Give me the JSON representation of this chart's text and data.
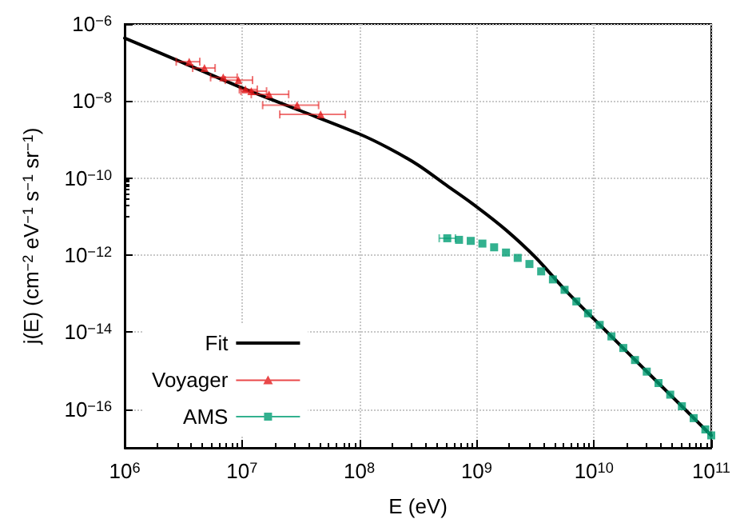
{
  "chart_data": {
    "type": "line",
    "xlabel": "E (eV)",
    "ylabel": "j(E) (cm$^{−2}$ eV$^{−1}$ s$^{−1}$ sr$^{−1}$)",
    "log": "xy",
    "grid": true,
    "legend": "bottom left",
    "xlim": [
      1000000.0,
      100000000000.0
    ],
    "ylim": [
      1e-17,
      1e-06
    ],
    "xticks": [
      {
        "value": 1000000.0,
        "label": "10$^{6}$"
      },
      {
        "value": 10000000.0,
        "label": "10$^{7}$"
      },
      {
        "value": 100000000.0,
        "label": "10$^{8}$"
      },
      {
        "value": 1000000000.0,
        "label": "10$^{9}$"
      },
      {
        "value": 10000000000.0,
        "label": "10$^{10}$"
      },
      {
        "value": 100000000000.0,
        "label": "10$^{11}$"
      }
    ],
    "yticks": [
      {
        "value": 1e-16,
        "label": "10$^{−16}$"
      },
      {
        "value": 1e-14,
        "label": "10$^{−14}$"
      },
      {
        "value": 1e-12,
        "label": "10$^{−12}$"
      },
      {
        "value": 1e-10,
        "label": "10$^{−10}$"
      },
      {
        "value": 1e-08,
        "label": "10$^{−8}$"
      },
      {
        "value": 1e-06,
        "label": "10$^{−6}$"
      }
    ],
    "series": [
      {
        "name": "Fit",
        "color": "#000000",
        "marker": "none",
        "line_style": "solid",
        "x": [
          1000000.0,
          3160000.0,
          10000000.0,
          31600000.0,
          100000000.0,
          178000000.0,
          316000000.0,
          562000000.0,
          1000000000.0,
          1780000000.0,
          3160000000.0,
          5620000000.0,
          10000000000.0,
          31600000000.0,
          100000000000.0
        ],
        "values": [
          4.3e-07,
          9.8e-08,
          2.2e-08,
          5.6e-09,
          1.4e-09,
          6e-10,
          2.2e-10,
          6.3e-11,
          1.8e-11,
          4.5e-12,
          8.9e-13,
          1.3e-13,
          2.2e-14,
          6.8e-16,
          2.1e-17
        ]
      },
      {
        "name": "Voyager",
        "type": "scatter",
        "color": "#e41a1c",
        "marker": "triangle",
        "x": [
          3550000.0,
          4790000.0,
          6920000.0,
          9330000.0,
          10700000.0,
          12000000.0,
          17000000.0,
          29500000.0,
          46800000.0
        ],
        "values": [
          1.05e-07,
          7.2e-08,
          4.1e-08,
          3.5e-08,
          2e-08,
          1.8e-08,
          1.5e-08,
          7.8e-09,
          4.5e-09
        ],
        "xerrors": [
          [
            2750000.0,
            4370000.0
          ],
          [
            3800000.0,
            5900000.0
          ],
          [
            5400000.0,
            9100000.0
          ],
          [
            7200000.0,
            12300000.0
          ],
          [
            9500000.0,
            13500000.0
          ],
          [
            9800000.0,
            16200000.0
          ],
          [
            12000000.0,
            25000000.0
          ],
          [
            15000000.0,
            45000000.0
          ],
          [
            21000000.0,
            76000000.0
          ]
        ]
      },
      {
        "name": "AMS",
        "type": "scatter",
        "color": "#009e73",
        "marker": "square",
        "x": [
          562000000.0,
          708000000.0,
          891000000.0,
          1120000000.0,
          1410000000.0,
          1780000000.0,
          2240000000.0,
          2820000000.0,
          3550000000.0,
          4470000000.0,
          5620000000.0,
          7080000000.0,
          8910000000.0,
          11200000000.0,
          14100000000.0,
          17800000000.0,
          22400000000.0,
          28200000000.0,
          35500000000.0,
          44700000000.0,
          56200000000.0,
          70800000000.0,
          89100000000.0,
          100000000000.0
        ],
        "values": [
          2.75e-12,
          2.5e-12,
          2.35e-12,
          2e-12,
          1.6e-12,
          1.17e-12,
          8.5e-13,
          5.9e-13,
          3.8e-13,
          2.35e-13,
          1.26e-13,
          6.3e-14,
          3.1e-14,
          1.55e-14,
          7.8e-15,
          3.9e-15,
          1.9e-15,
          9.5e-16,
          4.8e-16,
          2.4e-16,
          1.2e-16,
          5.9e-17,
          3e-17,
          2.1e-17
        ],
        "xerrors": [
          [
            480000000.0,
            660000000.0
          ],
          null,
          null,
          null,
          null,
          null,
          null,
          null,
          null,
          null,
          null,
          null,
          null,
          null,
          null,
          null,
          null,
          null,
          null,
          null,
          null,
          null,
          null,
          null
        ]
      }
    ]
  }
}
